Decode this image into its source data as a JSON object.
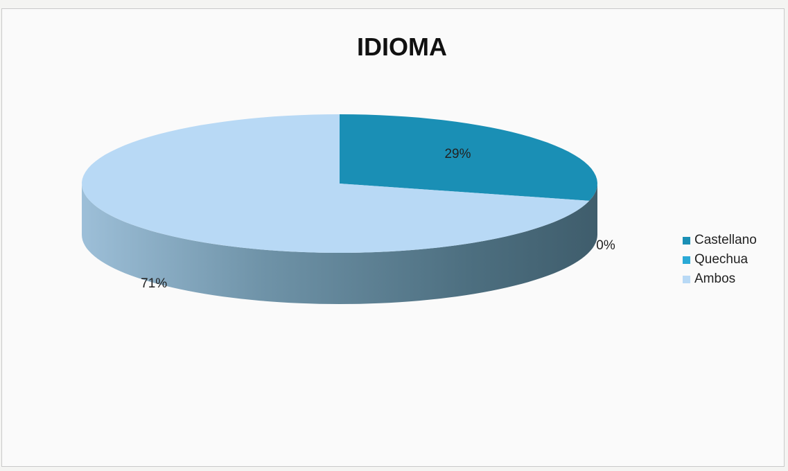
{
  "chart_data": {
    "type": "pie",
    "title": "IDIOMA",
    "categories": [
      "Castellano",
      "Quechua",
      "Ambos"
    ],
    "values": [
      29,
      0,
      71
    ],
    "data_labels": [
      "29%",
      "0%",
      "71%"
    ],
    "colors": [
      "#1a8fb5",
      "#2aa9d6",
      "#b8d9f5"
    ],
    "legend_position": "right",
    "style": "3d"
  }
}
